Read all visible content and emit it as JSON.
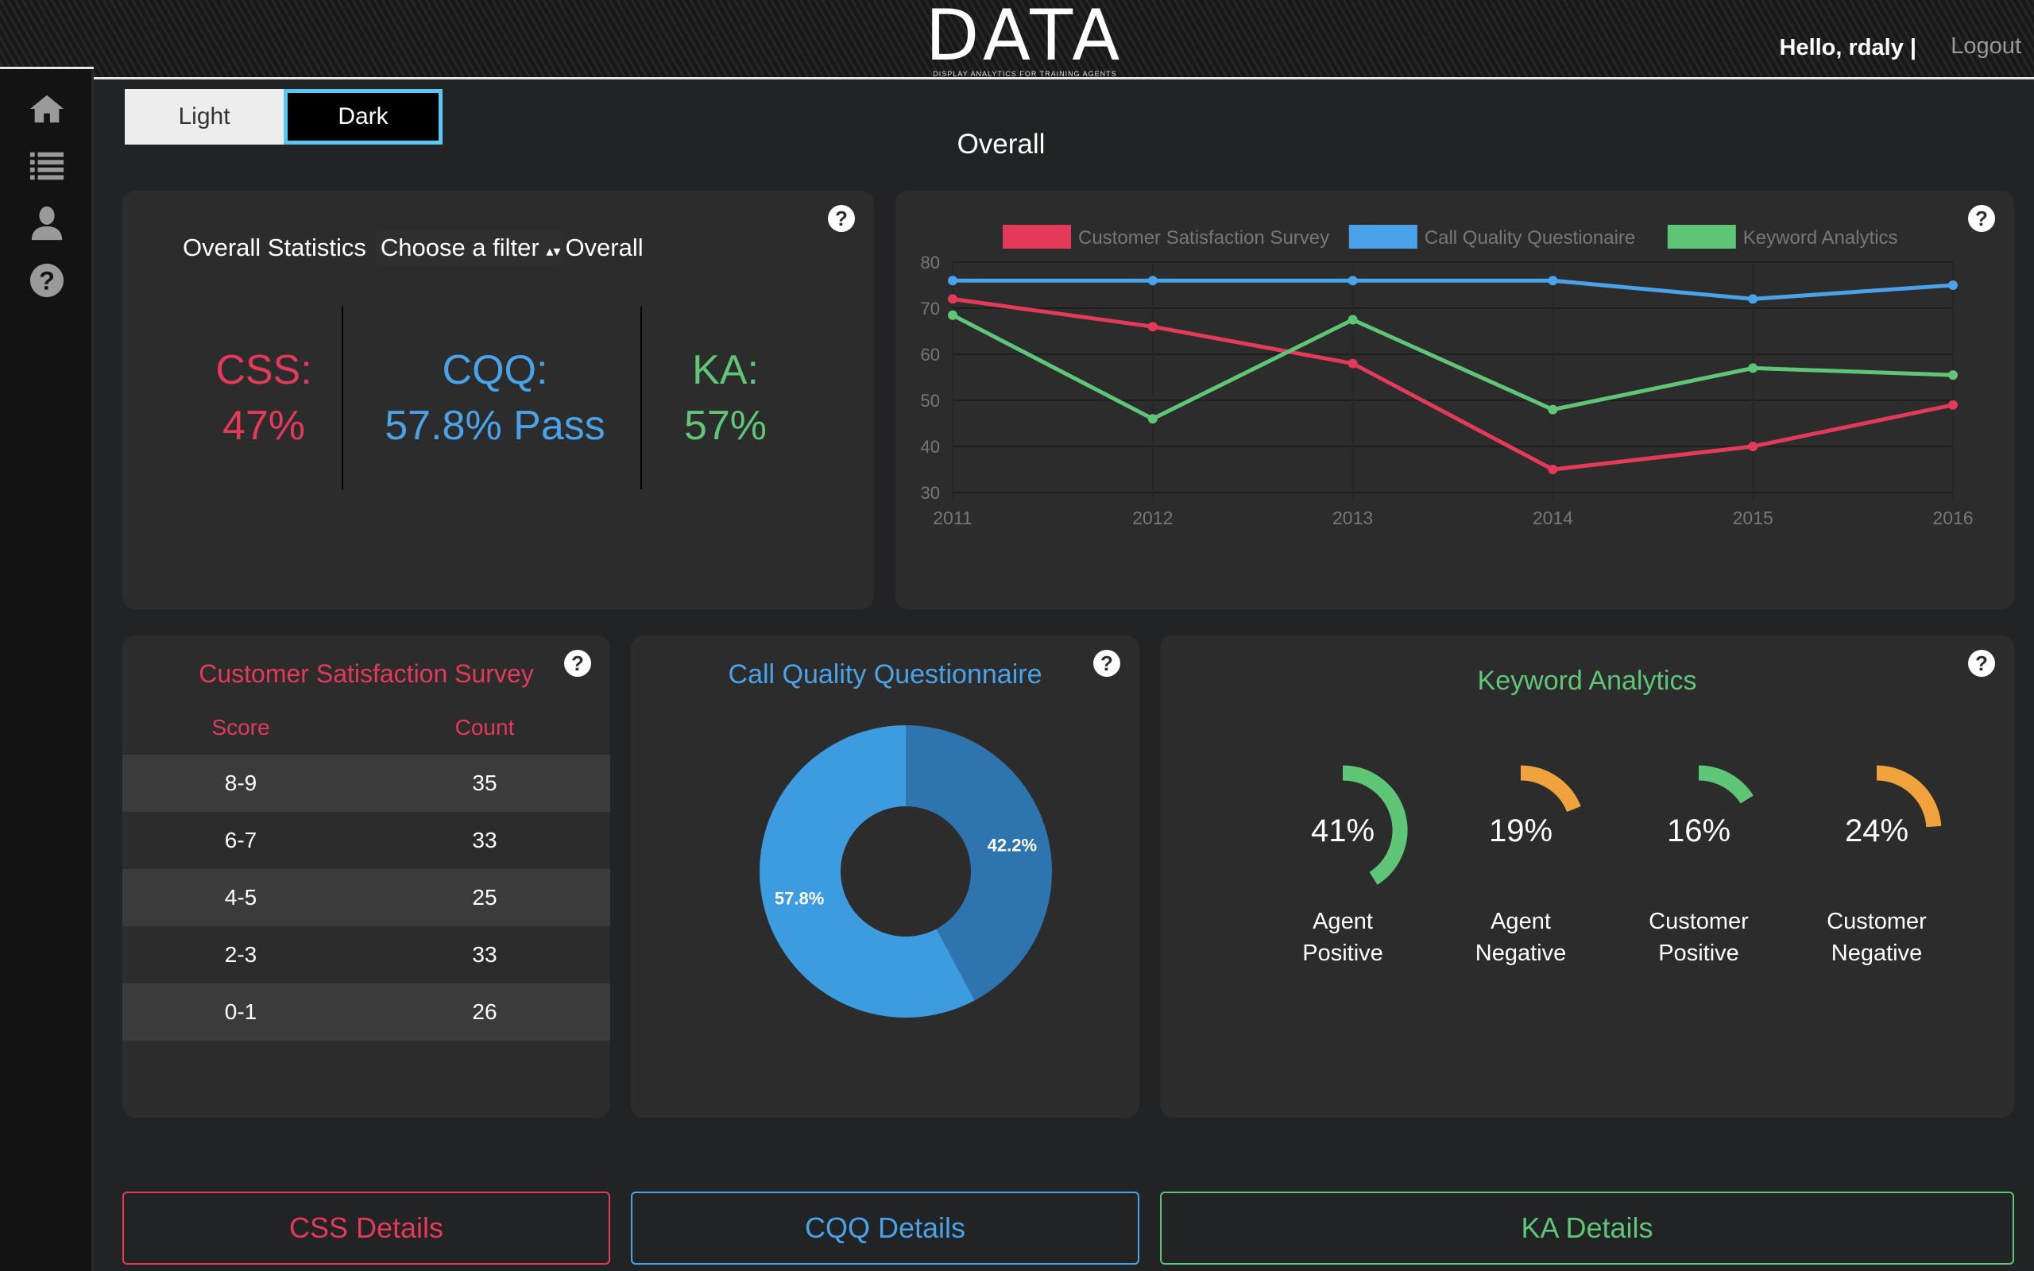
{
  "header": {
    "logo_title": "DATA",
    "logo_subtitle": "DISPLAY ANALYTICS FOR TRAINING AGENTS",
    "greeting": "Hello, rdaly  |",
    "logout": "Logout"
  },
  "sidebar": {
    "items": [
      {
        "icon": "home-icon"
      },
      {
        "icon": "list-icon"
      },
      {
        "icon": "user-icon"
      },
      {
        "icon": "help-icon"
      }
    ]
  },
  "theme_toggle": {
    "light": "Light",
    "dark": "Dark",
    "selected": "Dark"
  },
  "page_title": "Overall",
  "overall": {
    "title": "Overall Statistics",
    "filter_label": "Choose a filter",
    "filter_value": "Overall",
    "css_label": "CSS:",
    "css_value": "47%",
    "cqq_label": "CQQ:",
    "cqq_value": "57.8% Pass",
    "ka_label": "KA:",
    "ka_value": "57%"
  },
  "colors": {
    "css": "#e33a5a",
    "cqq": "#4aa3e8",
    "ka": "#5fc678",
    "orange": "#f0a33c"
  },
  "chart_data": {
    "type": "line",
    "categories": [
      "2011",
      "2012",
      "2013",
      "2014",
      "2015",
      "2016"
    ],
    "ylim": [
      30,
      80
    ],
    "yticks": [
      "80",
      "70",
      "60",
      "50",
      "40",
      "30"
    ],
    "series": [
      {
        "name": "Customer Satisfaction Survey",
        "color": "#e33a5a",
        "values": [
          72,
          66,
          58,
          35,
          40,
          49
        ]
      },
      {
        "name": "Call Quality Questionaire",
        "color": "#4aa3e8",
        "values": [
          76,
          76,
          76,
          76,
          72,
          75
        ]
      },
      {
        "name": "Keyword Analytics",
        "color": "#5fc678",
        "values": [
          68.5,
          46,
          67.5,
          48,
          57,
          55.5
        ]
      }
    ],
    "legend": "top",
    "grid": true
  },
  "css_table": {
    "title": "Customer Satisfaction Survey",
    "headers": [
      "Score",
      "Count"
    ],
    "rows": [
      [
        "8-9",
        "35"
      ],
      [
        "6-7",
        "33"
      ],
      [
        "4-5",
        "25"
      ],
      [
        "2-3",
        "33"
      ],
      [
        "0-1",
        "26"
      ]
    ]
  },
  "cqq": {
    "title": "Call Quality Questionnaire",
    "slices": [
      {
        "label": "42.2%",
        "value": 42.2,
        "color": "#2e75b0"
      },
      {
        "label": "57.8%",
        "value": 57.8,
        "color": "#3d9be0"
      }
    ]
  },
  "ka": {
    "title": "Keyword Analytics",
    "gauges": [
      {
        "value": "41%",
        "fraction": 0.41,
        "line1": "Agent",
        "line2": "Positive",
        "color": "#5fc678"
      },
      {
        "value": "19%",
        "fraction": 0.19,
        "line1": "Agent",
        "line2": "Negative",
        "color": "#f0a33c"
      },
      {
        "value": "16%",
        "fraction": 0.16,
        "line1": "Customer",
        "line2": "Positive",
        "color": "#5fc678"
      },
      {
        "value": "24%",
        "fraction": 0.24,
        "line1": "Customer",
        "line2": "Negative",
        "color": "#f0a33c"
      }
    ]
  },
  "buttons": {
    "css": "CSS Details",
    "cqq": "CQQ Details",
    "ka": "KA Details"
  },
  "help": "?"
}
